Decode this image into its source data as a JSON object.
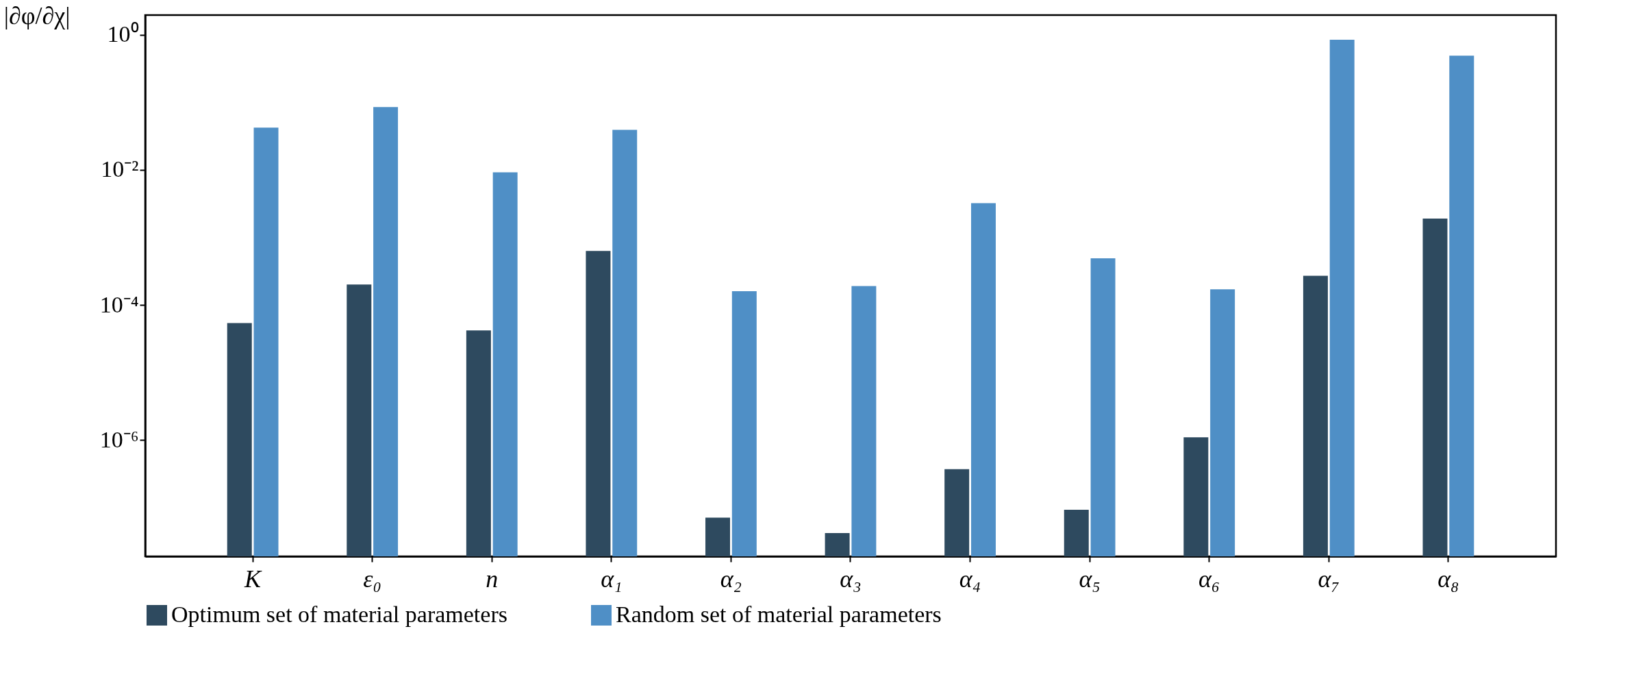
{
  "chart_data": {
    "type": "bar",
    "ylabel": "|∂φ/∂χ|",
    "categories": [
      "K",
      "ε₀",
      "n",
      "α₁",
      "α₂",
      "α₃",
      "α₄",
      "α₅",
      "α₆",
      "α₇",
      "α₈"
    ],
    "series": [
      {
        "name": "Optimum set of material parameters",
        "color": "#2e4a5f",
        "values": [
          5.4e-05,
          0.0002,
          4.2e-05,
          0.00063,
          7.1e-08,
          4.2e-08,
          3.7e-07,
          9.3e-08,
          1.1e-06,
          0.00027,
          0.0019
        ]
      },
      {
        "name": "Random set of material parameters",
        "color": "#4f8fc6",
        "values": [
          0.042,
          0.085,
          0.0092,
          0.039,
          0.00016,
          0.00019,
          0.0032,
          0.00049,
          0.00017,
          0.84,
          0.49
        ]
      }
    ],
    "log": true,
    "ylim": [
      1.9e-08,
      1.95
    ],
    "yticks": [
      {
        "value": 1e-06,
        "label": "10⁻⁶"
      },
      {
        "value": 0.0001,
        "label": "10⁻⁴"
      },
      {
        "value": 0.01,
        "label": "10⁻²"
      },
      {
        "value": 1,
        "label": "10⁰"
      }
    ],
    "grid": false,
    "legend": "bottom"
  }
}
